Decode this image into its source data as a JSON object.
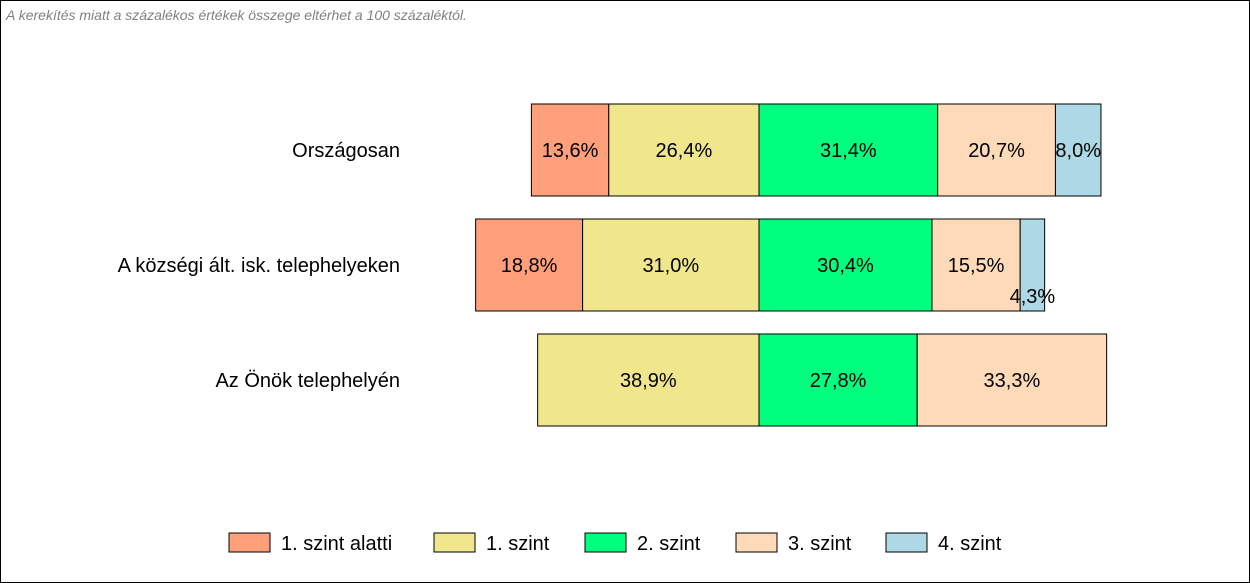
{
  "note": "A kerekítés miatt a  százalékos értékek összege eltérhet a 100 százaléktól.",
  "chart_data": {
    "type": "bar",
    "orientation": "horizontal",
    "stacked": true,
    "categories": [
      "Országosan",
      "A községi ált. isk. telephelyeken",
      "Az Önök telephelyén"
    ],
    "series": [
      {
        "name": "1. szint alatti",
        "color": "#FFA07A",
        "values": [
          13.6,
          18.8,
          null
        ],
        "labels": [
          "13,6%",
          "18,8%",
          ""
        ]
      },
      {
        "name": "1. szint",
        "color": "#F0E68C",
        "values": [
          26.4,
          31.0,
          38.9
        ],
        "labels": [
          "26,4%",
          "31,0%",
          "38,9%"
        ]
      },
      {
        "name": "2. szint",
        "color": "#00FF7F",
        "values": [
          31.4,
          30.4,
          27.8
        ],
        "labels": [
          "31,4%",
          "30,4%",
          "27,8%"
        ]
      },
      {
        "name": "3. szint",
        "color": "#FFDAB9",
        "values": [
          20.7,
          15.5,
          33.3
        ],
        "labels": [
          "20,7%",
          "15,5%",
          "33,3%"
        ]
      },
      {
        "name": "4. szint",
        "color": "#ADD8E6",
        "values": [
          8.0,
          4.3,
          null
        ],
        "labels": [
          "8,0%",
          "4,3%",
          ""
        ]
      }
    ],
    "legend_position": "bottom",
    "grid": false
  }
}
